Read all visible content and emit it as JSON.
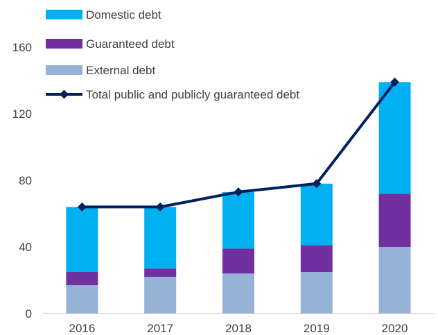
{
  "chart_data": {
    "type": "bar",
    "stacked": true,
    "categories": [
      "2016",
      "2017",
      "2018",
      "2019",
      "2020"
    ],
    "series": [
      {
        "name": "External debt",
        "kind": "bar",
        "color": "#95b3d7",
        "values": [
          17,
          22,
          24,
          25,
          40
        ]
      },
      {
        "name": "Guaranteed debt",
        "kind": "bar",
        "color": "#7030a0",
        "values": [
          8,
          5,
          15,
          16,
          32
        ]
      },
      {
        "name": "Domestic debt",
        "kind": "bar",
        "color": "#00b0f0",
        "values": [
          39,
          37,
          34,
          37,
          67
        ]
      },
      {
        "name": "Total public and publicly guaranteed debt",
        "kind": "line",
        "color": "#002060",
        "values": [
          64,
          64,
          73,
          78,
          139
        ]
      }
    ],
    "legend_order": [
      "Domestic debt",
      "Guaranteed debt",
      "External debt",
      "Total public and publicly guaranteed debt"
    ],
    "legend_position": "top-left",
    "yticks": [
      0,
      40,
      80,
      120,
      160
    ],
    "ylim": [
      0,
      160
    ],
    "grid": false
  }
}
